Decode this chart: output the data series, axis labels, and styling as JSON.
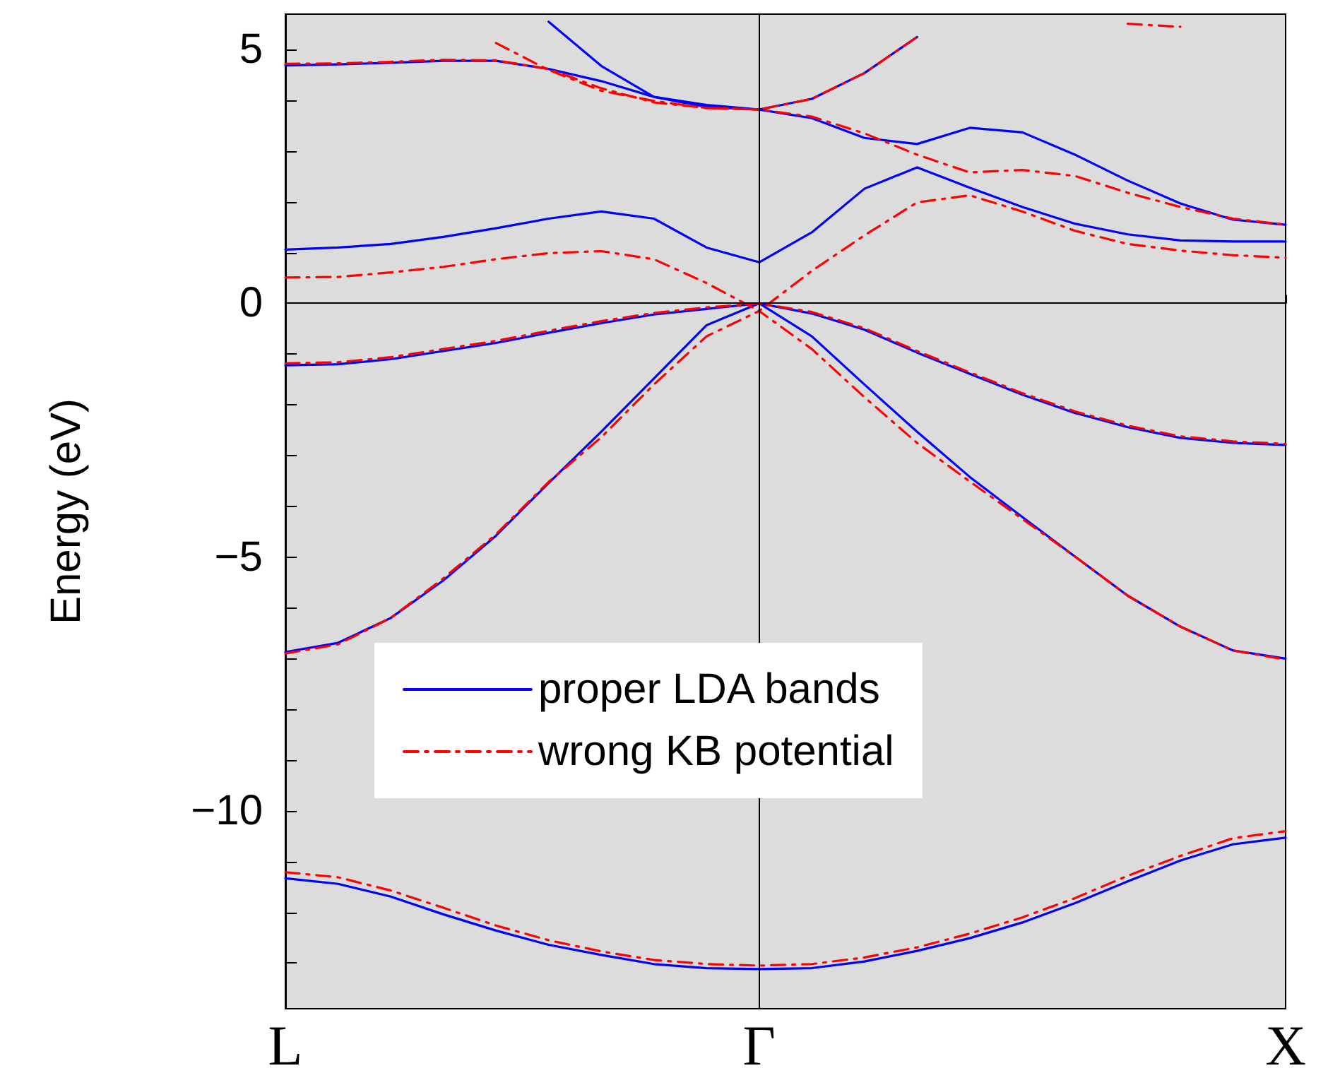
{
  "chart_data": {
    "type": "line",
    "ylabel": "Energy (eV)",
    "categories": [
      "L",
      null,
      null,
      null,
      null,
      null,
      null,
      null,
      null,
      "Γ",
      null,
      null,
      null,
      null,
      null,
      null,
      null,
      null,
      null,
      "X"
    ],
    "ylim": [
      -13.9,
      5.7
    ],
    "yticks": [
      {
        "value": -13,
        "label": null
      },
      {
        "value": -12,
        "label": null
      },
      {
        "value": -11,
        "label": null
      },
      {
        "value": -10,
        "label": "−10"
      },
      {
        "value": -9,
        "label": null
      },
      {
        "value": -8,
        "label": null
      },
      {
        "value": -7,
        "label": null
      },
      {
        "value": -6,
        "label": null
      },
      {
        "value": -5,
        "label": "−5"
      },
      {
        "value": -4,
        "label": null
      },
      {
        "value": -3,
        "label": null
      },
      {
        "value": -2,
        "label": null
      },
      {
        "value": -1,
        "label": null
      },
      0,
      {
        "value": 1,
        "label": null
      },
      {
        "value": 2,
        "label": null
      },
      {
        "value": 3,
        "label": null
      },
      {
        "value": 4,
        "label": null
      },
      5
    ],
    "grid": false,
    "legend": "bottom left",
    "marker": "none",
    "ref_lines": [
      {
        "axis": "y",
        "value": 0,
        "color": "#000000"
      },
      {
        "axis": "x",
        "value": "Γ",
        "color": "#000000"
      }
    ],
    "series": [
      {
        "name": "proper LDA bands",
        "color": "#0000ff",
        "line_style": "solid",
        "values": [
          -11.33,
          -11.44,
          -11.69,
          -12.04,
          -12.36,
          -12.64,
          -12.84,
          -13.02,
          -13.1,
          -13.12,
          -13.1,
          -12.97,
          -12.76,
          -12.51,
          -12.2,
          -11.82,
          -11.39,
          -10.98,
          -10.66,
          -10.53
        ]
      },
      {
        "color": "#0000ff",
        "line_style": "solid",
        "values": [
          -6.87,
          -6.69,
          -6.2,
          -5.46,
          -4.58,
          -3.54,
          -2.53,
          -1.48,
          -0.43,
          0,
          -0.65,
          -1.6,
          -2.53,
          -3.42,
          -4.21,
          -4.99,
          -5.76,
          -6.37,
          -6.84,
          -7.0
        ]
      },
      {
        "color": "#0000ff",
        "line_style": "solid",
        "values": [
          -1.22,
          -1.2,
          -1.1,
          -0.94,
          -0.78,
          -0.58,
          -0.39,
          -0.22,
          -0.11,
          0,
          -0.2,
          -0.52,
          -0.97,
          -1.39,
          -1.8,
          -2.16,
          -2.44,
          -2.65,
          -2.75,
          -2.79
        ]
      },
      {
        "color": "#0000ff",
        "line_style": "solid",
        "values": [
          1.06,
          1.1,
          1.17,
          1.31,
          1.48,
          1.67,
          1.81,
          1.67,
          1.1,
          0.81,
          1.4,
          2.26,
          2.68,
          2.28,
          1.9,
          1.57,
          1.36,
          1.24,
          1.22,
          1.22
        ]
      },
      {
        "color": "#0000ff",
        "line_style": "solid",
        "values": [
          4.69,
          4.71,
          4.74,
          4.78,
          4.78,
          4.62,
          4.38,
          4.07,
          3.87,
          3.82,
          3.65,
          3.26,
          3.14,
          3.46,
          3.37,
          2.93,
          2.42,
          1.97,
          1.65,
          1.55
        ]
      },
      {
        "color": "#0000ff",
        "line_style": "solid",
        "values": [
          null,
          null,
          null,
          null,
          null,
          5.55,
          4.68,
          4.07,
          3.91,
          3.82,
          4.03,
          4.54,
          5.25,
          null,
          null,
          null,
          null,
          null,
          null,
          null
        ]
      },
      {
        "name": "wrong KB potential",
        "color": "#ff0000",
        "line_style": "dashed",
        "values": [
          -11.21,
          -11.31,
          -11.57,
          -11.91,
          -12.26,
          -12.55,
          -12.77,
          -12.94,
          -13.02,
          -13.05,
          -13.02,
          -12.89,
          -12.69,
          -12.42,
          -12.1,
          -11.72,
          -11.28,
          -10.89,
          -10.54,
          -10.4
        ]
      },
      {
        "color": "#ff0000",
        "line_style": "dashed",
        "values": [
          -6.9,
          -6.72,
          -6.2,
          -5.42,
          -4.55,
          -3.52,
          -2.64,
          -1.6,
          -0.65,
          -0.15,
          -0.9,
          -1.85,
          -2.75,
          -3.51,
          -4.25,
          -4.99,
          -5.76,
          -6.37,
          -6.84,
          -7.02
        ]
      },
      {
        "color": "#ff0000",
        "line_style": "dashed",
        "values": [
          -1.18,
          -1.16,
          -1.06,
          -0.9,
          -0.74,
          -0.54,
          -0.35,
          -0.19,
          -0.08,
          0,
          -0.17,
          -0.49,
          -0.94,
          -1.36,
          -1.77,
          -2.13,
          -2.41,
          -2.62,
          -2.72,
          -2.77
        ]
      },
      {
        "color": "#ff0000",
        "line_style": "dashed",
        "values": [
          0.51,
          0.52,
          0.61,
          0.72,
          0.87,
          0.99,
          1.03,
          0.87,
          0.4,
          -0.15,
          0.64,
          1.34,
          1.99,
          2.13,
          1.81,
          1.43,
          1.17,
          1.04,
          0.95,
          0.9
        ]
      },
      {
        "color": "#ff0000",
        "line_style": "dashed",
        "values": [
          4.72,
          4.73,
          4.76,
          4.8,
          4.79,
          4.62,
          4.24,
          3.96,
          3.85,
          3.82,
          3.68,
          3.35,
          2.93,
          2.58,
          2.63,
          2.51,
          2.18,
          1.9,
          1.67,
          1.55
        ]
      },
      {
        "color": "#ff0000",
        "line_style": "dashed",
        "values": [
          null,
          null,
          null,
          null,
          5.13,
          4.6,
          4.19,
          3.99,
          3.85,
          3.82,
          4.03,
          4.54,
          5.25,
          null,
          null,
          null,
          null,
          null,
          null,
          null
        ]
      },
      {
        "color": "#ff0000",
        "line_style": "dashed",
        "values": [
          null,
          null,
          null,
          null,
          null,
          null,
          null,
          null,
          null,
          null,
          null,
          null,
          null,
          null,
          null,
          null,
          5.51,
          5.45,
          null,
          null
        ]
      }
    ]
  }
}
